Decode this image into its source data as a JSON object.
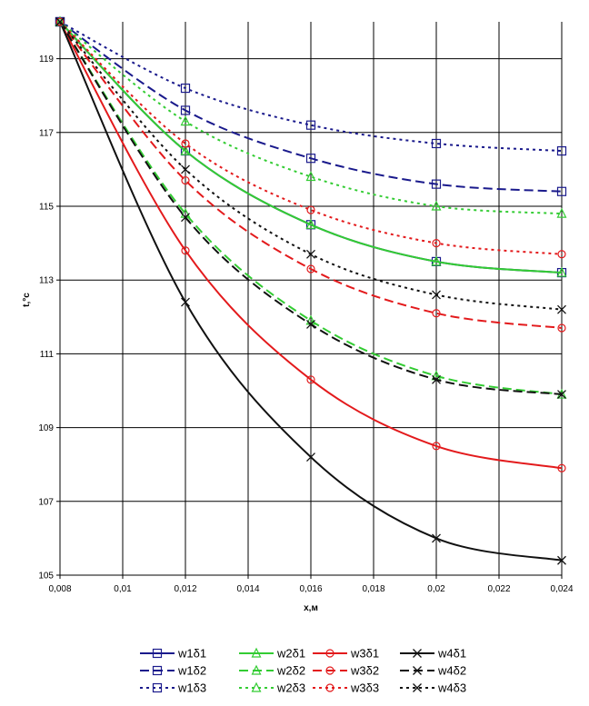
{
  "chart_data": {
    "type": "line",
    "title": "",
    "xlabel": "x,м",
    "ylabel": "t,°c",
    "xlim": [
      0.008,
      0.024
    ],
    "ylim": [
      105,
      120
    ],
    "x_ticks": [
      {
        "value": 0.008,
        "label": "0,008"
      },
      {
        "value": 0.01,
        "label": "0,01"
      },
      {
        "value": 0.012,
        "label": "0,012"
      },
      {
        "value": 0.014,
        "label": "0,014"
      },
      {
        "value": 0.016,
        "label": "0,016"
      },
      {
        "value": 0.018,
        "label": "0,018"
      },
      {
        "value": 0.02,
        "label": "0,02"
      },
      {
        "value": 0.022,
        "label": "0,022"
      },
      {
        "value": 0.024,
        "label": "0,024"
      }
    ],
    "y_ticks": [
      {
        "value": 105,
        "label": "105"
      },
      {
        "value": 107,
        "label": "107"
      },
      {
        "value": 109,
        "label": "109"
      },
      {
        "value": 111,
        "label": "111"
      },
      {
        "value": 113,
        "label": "113"
      },
      {
        "value": 115,
        "label": "115"
      },
      {
        "value": 117,
        "label": "117"
      },
      {
        "value": 119,
        "label": "119"
      }
    ],
    "grid": true,
    "legend_position": "bottom",
    "x": [
      0.008,
      0.012,
      0.016,
      0.02,
      0.024
    ],
    "series": [
      {
        "name": "w1δ1",
        "color": "#1a1a8c",
        "dash": "solid",
        "marker": "square",
        "values": [
          120,
          116.5,
          114.5,
          113.5,
          113.2
        ]
      },
      {
        "name": "w2δ1",
        "color": "#33cc33",
        "dash": "solid",
        "marker": "triangle",
        "values": [
          120,
          116.5,
          114.5,
          113.5,
          113.2
        ]
      },
      {
        "name": "w3δ1",
        "color": "#e31a1c",
        "dash": "solid",
        "marker": "circle",
        "values": [
          120,
          113.8,
          110.3,
          108.5,
          107.9
        ]
      },
      {
        "name": "w4δ1",
        "color": "#111111",
        "dash": "solid",
        "marker": "x",
        "values": [
          120,
          112.4,
          108.2,
          106.0,
          105.4
        ]
      },
      {
        "name": "w1δ2",
        "color": "#1a1a8c",
        "dash": "dash",
        "marker": "square",
        "values": [
          120,
          117.6,
          116.3,
          115.6,
          115.4
        ]
      },
      {
        "name": "w2δ2",
        "color": "#33cc33",
        "dash": "dash",
        "marker": "triangle",
        "values": [
          120,
          114.8,
          111.9,
          110.4,
          109.9
        ]
      },
      {
        "name": "w3δ2",
        "color": "#e31a1c",
        "dash": "dash",
        "marker": "circle",
        "values": [
          120,
          115.7,
          113.3,
          112.1,
          111.7
        ]
      },
      {
        "name": "w4δ2",
        "color": "#111111",
        "dash": "dash",
        "marker": "x",
        "values": [
          120,
          114.7,
          111.8,
          110.3,
          109.9
        ]
      },
      {
        "name": "w1δ3",
        "color": "#1a1a8c",
        "dash": "dot",
        "marker": "square",
        "values": [
          120,
          118.2,
          117.2,
          116.7,
          116.5
        ]
      },
      {
        "name": "w2δ3",
        "color": "#33cc33",
        "dash": "dot",
        "marker": "triangle",
        "values": [
          120,
          117.3,
          115.8,
          115.0,
          114.8
        ]
      },
      {
        "name": "w3δ3",
        "color": "#e31a1c",
        "dash": "dot",
        "marker": "circle",
        "values": [
          120,
          116.7,
          114.9,
          114.0,
          113.7
        ]
      },
      {
        "name": "w4δ3",
        "color": "#111111",
        "dash": "dot",
        "marker": "x",
        "values": [
          120,
          116.0,
          113.7,
          112.6,
          112.2
        ]
      }
    ]
  }
}
